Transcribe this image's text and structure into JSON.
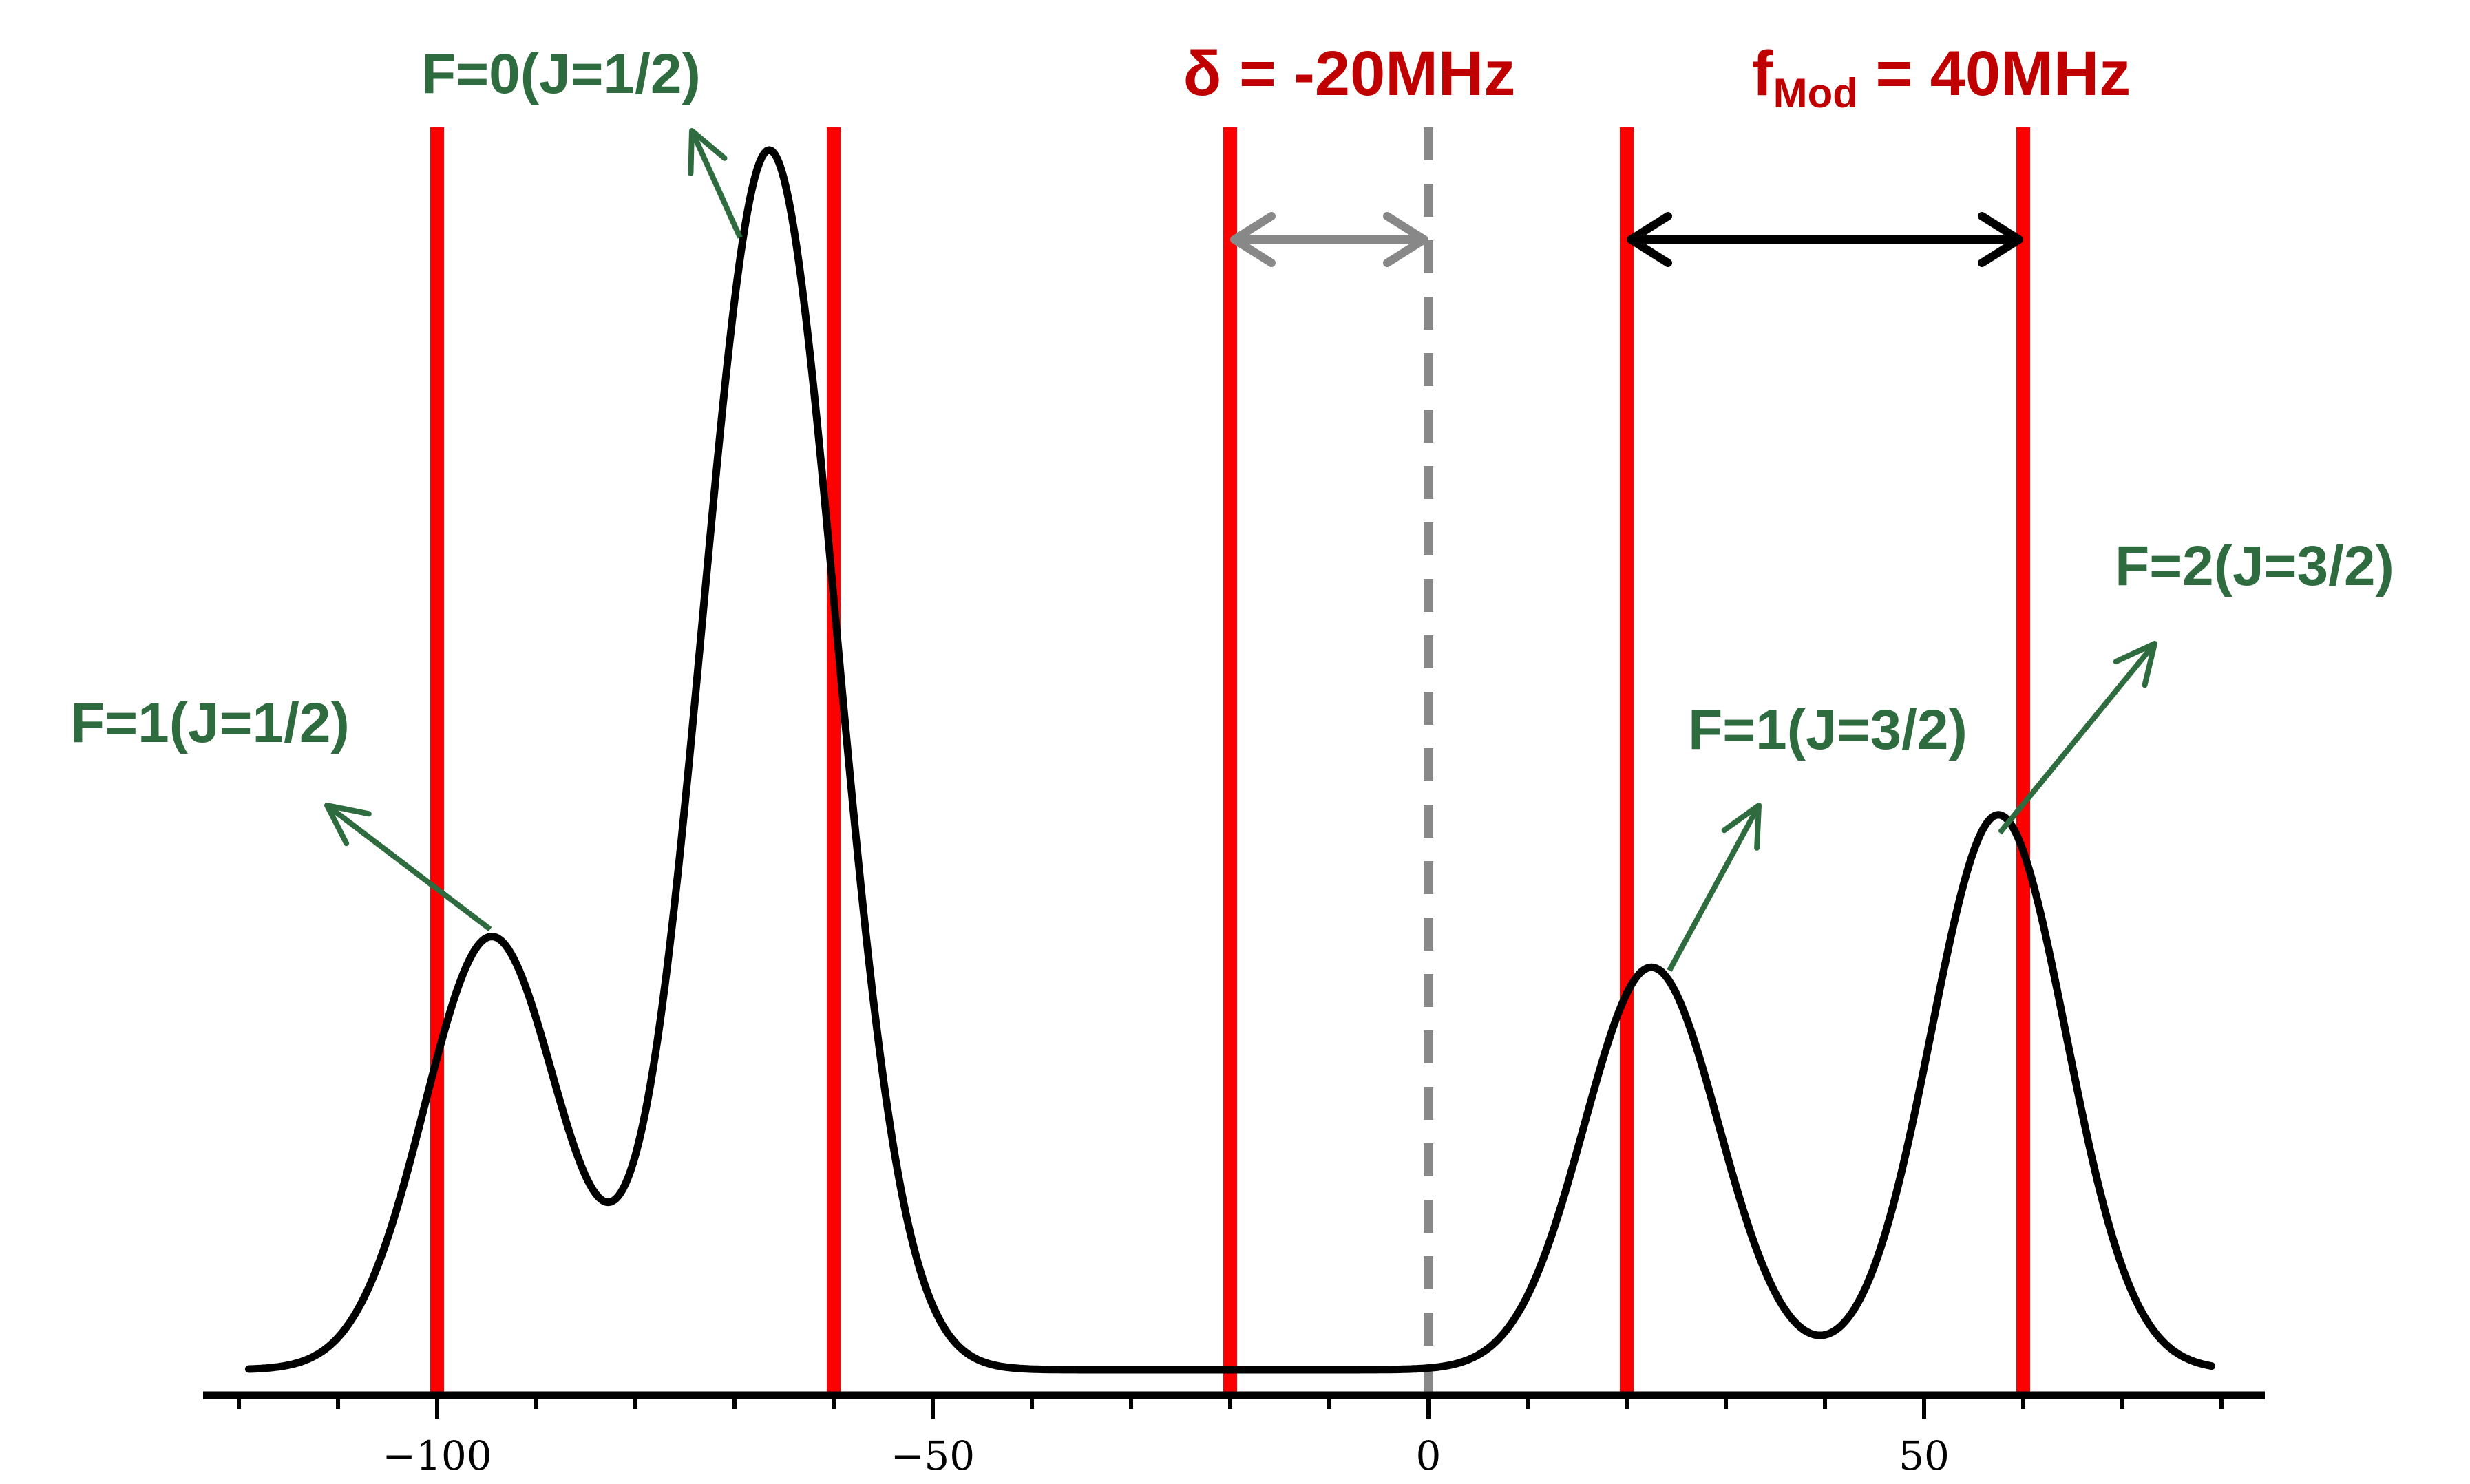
{
  "chart_data": {
    "type": "line",
    "title": "",
    "xlabel": "",
    "ylabel": "",
    "xlim": [
      -120,
      80
    ],
    "ylim": [
      0,
      1
    ],
    "x_ticks": [
      -100,
      -50,
      0,
      50
    ],
    "x_tick_labels": [
      "−100",
      "−50",
      "0",
      "50"
    ],
    "minor_tick_step": 10,
    "grid": false,
    "colors": {
      "curve": "#000000",
      "laser_lines": "#ff0000",
      "carrier_line": "#888888",
      "green_text": "#2e6b3f",
      "red_text": "#c00000",
      "delta_arrow": "#888888",
      "fmod_arrow": "#000000"
    },
    "series": [
      {
        "name": "spectrum",
        "peaks": [
          {
            "label": "F=1(J=1/2)",
            "center": -94.5,
            "height": 0.355,
            "width": 6.8
          },
          {
            "label": "F=0(J=1/2)",
            "center": -66.5,
            "height": 1.0,
            "width": 6.8
          },
          {
            "label": "F=1(J=3/2)",
            "center": 22.5,
            "height": 0.33,
            "width": 6.8
          },
          {
            "label": "F=2(J=3/2)",
            "center": 57.5,
            "height": 0.455,
            "width": 6.8
          }
        ],
        "baseline": 0.0
      }
    ],
    "vertical_lines": [
      {
        "name": "laser-line-1",
        "x": -100,
        "style": "solid"
      },
      {
        "name": "laser-line-2",
        "x": -60,
        "style": "solid"
      },
      {
        "name": "laser-line-3",
        "x": -20,
        "style": "solid"
      },
      {
        "name": "laser-line-4",
        "x": 20,
        "style": "solid"
      },
      {
        "name": "laser-line-5",
        "x": 60,
        "style": "solid"
      }
    ],
    "carrier_line": {
      "x": 0,
      "style": "dashed"
    },
    "annotations": {
      "delta": {
        "symbol": "δ",
        "text": " = -20MHz",
        "from_x": -20,
        "to_x": 0
      },
      "fmod": {
        "f": "f",
        "sub": "Mod",
        "text": " = 40MHz",
        "from_x": 20,
        "to_x": 60
      },
      "peak_labels": [
        "F=0(J=1/2)",
        "F=1(J=1/2)",
        "F=1(J=3/2)",
        "F=2(J=3/2)"
      ]
    }
  }
}
